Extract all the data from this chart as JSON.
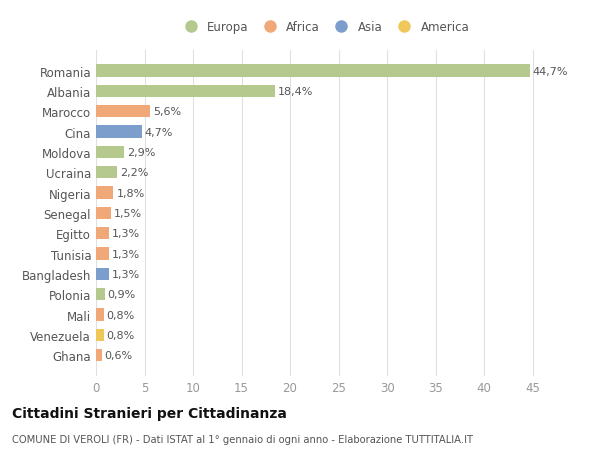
{
  "categories": [
    "Romania",
    "Albania",
    "Marocco",
    "Cina",
    "Moldova",
    "Ucraina",
    "Nigeria",
    "Senegal",
    "Egitto",
    "Tunisia",
    "Bangladesh",
    "Polonia",
    "Mali",
    "Venezuela",
    "Ghana"
  ],
  "values": [
    44.7,
    18.4,
    5.6,
    4.7,
    2.9,
    2.2,
    1.8,
    1.5,
    1.3,
    1.3,
    1.3,
    0.9,
    0.8,
    0.8,
    0.6
  ],
  "labels": [
    "44,7%",
    "18,4%",
    "5,6%",
    "4,7%",
    "2,9%",
    "2,2%",
    "1,8%",
    "1,5%",
    "1,3%",
    "1,3%",
    "1,3%",
    "0,9%",
    "0,8%",
    "0,8%",
    "0,6%"
  ],
  "colors": [
    "#b5c98e",
    "#b5c98e",
    "#f0a878",
    "#7b9ecc",
    "#b5c98e",
    "#b5c98e",
    "#f0a878",
    "#f0a878",
    "#f0a878",
    "#f0a878",
    "#7b9ecc",
    "#b5c98e",
    "#f0a878",
    "#f0c85a",
    "#f0a878"
  ],
  "legend_labels": [
    "Europa",
    "Africa",
    "Asia",
    "America"
  ],
  "legend_colors": [
    "#b5c98e",
    "#f0a878",
    "#7b9ecc",
    "#f0c85a"
  ],
  "title": "Cittadini Stranieri per Cittadinanza",
  "subtitle": "COMUNE DI VEROLI (FR) - Dati ISTAT al 1° gennaio di ogni anno - Elaborazione TUTTITALIA.IT",
  "xlim": [
    0,
    47
  ],
  "xticks": [
    0,
    5,
    10,
    15,
    20,
    25,
    30,
    35,
    40,
    45
  ],
  "background_color": "#ffffff",
  "plot_bg_color": "#ffffff",
  "grid_color": "#e0e0e0",
  "label_color": "#555555",
  "tick_color": "#999999",
  "title_color": "#111111",
  "subtitle_color": "#555555"
}
